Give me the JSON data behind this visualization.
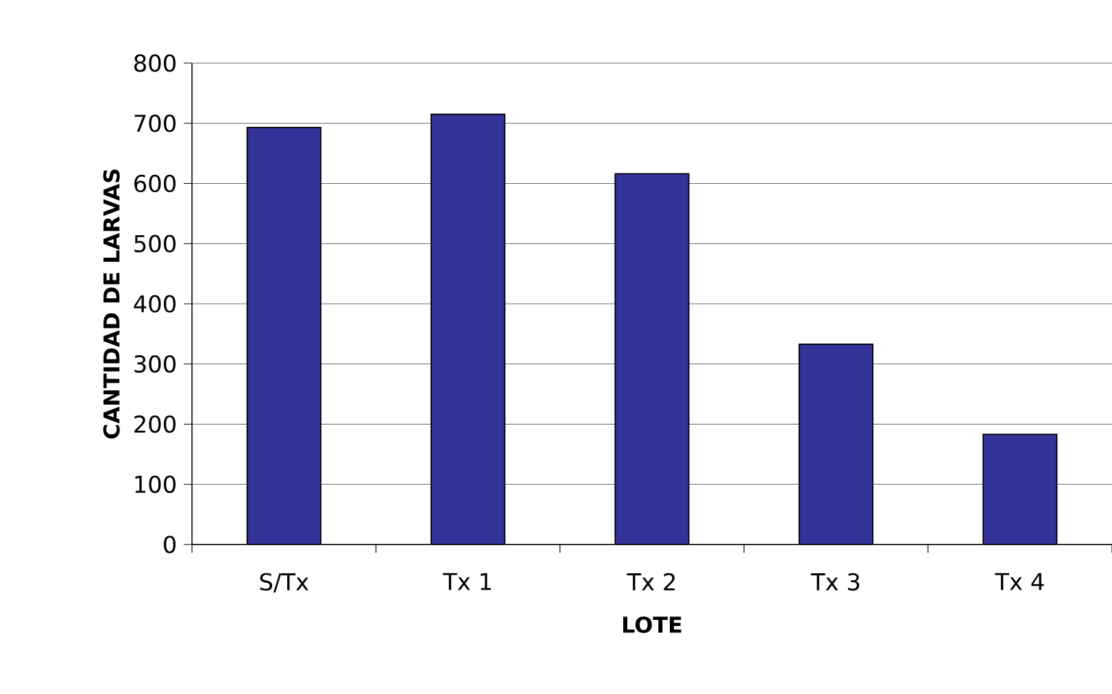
{
  "chart_data": {
    "type": "bar",
    "xlabel": "LOTE",
    "ylabel": "CANTIDAD DE LARVAS",
    "categories": [
      "S/Tx",
      "Tx 1",
      "Tx 2",
      "Tx 3",
      "Tx 4"
    ],
    "values": [
      693,
      715,
      616,
      333,
      183
    ],
    "color": "#333399",
    "ylim": [
      0,
      800
    ],
    "yticks": [
      0,
      100,
      200,
      300,
      400,
      500,
      600,
      700,
      800
    ],
    "grid": "y"
  }
}
